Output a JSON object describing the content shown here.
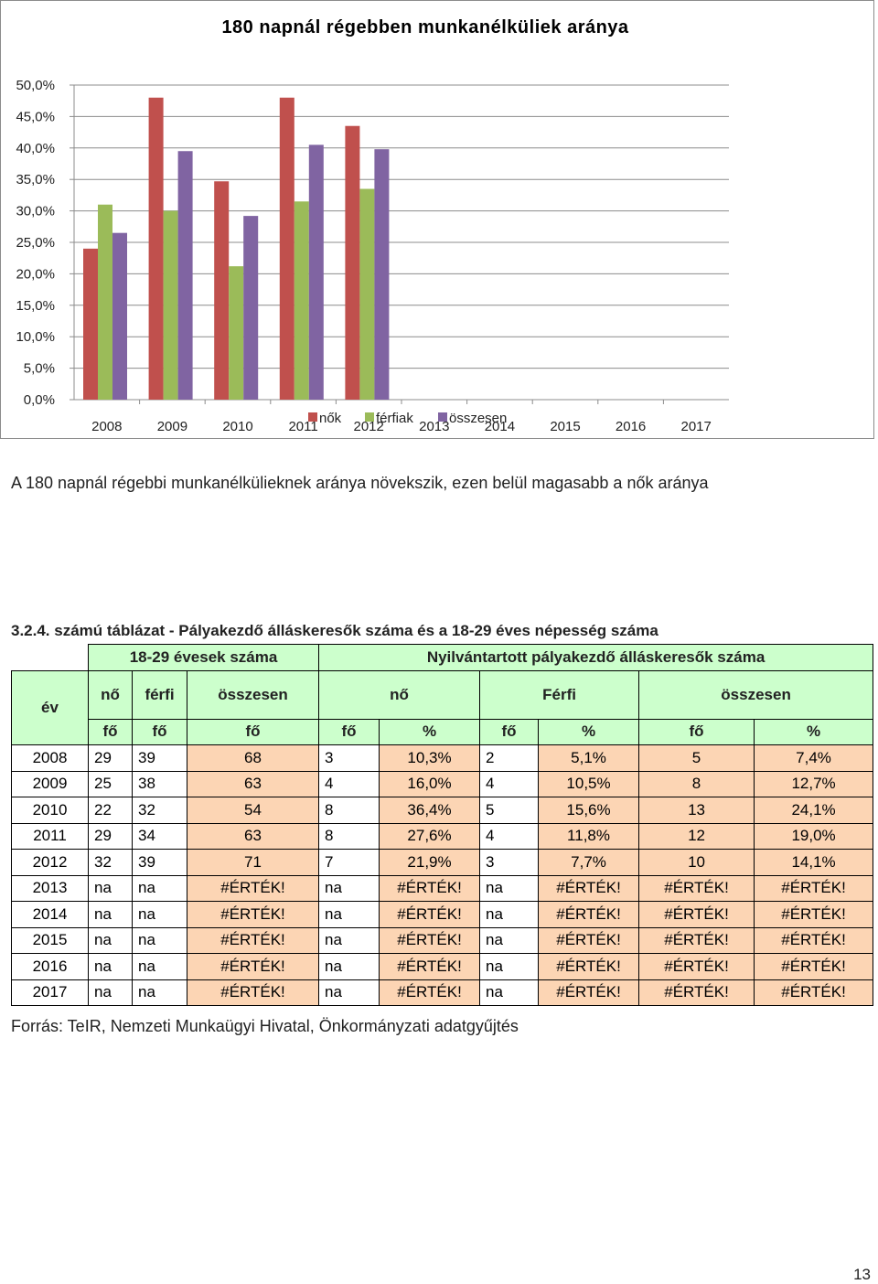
{
  "chart_data": {
    "type": "bar",
    "title": "180 napnál régebben munkanélküliek aránya",
    "categories": [
      "2008",
      "2009",
      "2010",
      "2011",
      "2012",
      "2013",
      "2014",
      "2015",
      "2016",
      "2017"
    ],
    "y_ticks": [
      "50,0%",
      "45,0%",
      "40,0%",
      "35,0%",
      "30,0%",
      "25,0%",
      "20,0%",
      "15,0%",
      "10,0%",
      "5,0%",
      "0,0%"
    ],
    "ylim": [
      0,
      50
    ],
    "grid": true,
    "legend_position": "bottom",
    "series": [
      {
        "name": "nők",
        "color": "#c0504d",
        "values": [
          24.0,
          48.0,
          34.7,
          48.0,
          43.5,
          null,
          null,
          null,
          null,
          null
        ]
      },
      {
        "name": "férfiak",
        "color": "#9bbb59",
        "values": [
          31.0,
          30.0,
          21.2,
          31.5,
          33.5,
          null,
          null,
          null,
          null,
          null
        ]
      },
      {
        "name": "összesen",
        "color": "#8064a2",
        "values": [
          26.5,
          39.5,
          29.2,
          40.5,
          39.8,
          null,
          null,
          null,
          null,
          null
        ]
      }
    ]
  },
  "paragraph": "A 180 napnál régebbi munkanélkülieknek aránya növekszik, ezen belül magasabb a nők aránya",
  "table": {
    "caption": "3.2.4. számú táblázat - Pályakezdő álláskeresők száma és a 18-29 éves népesség száma",
    "group1": "18-29 évesek száma",
    "group2": "Nyilvántartott pályakezdő álláskeresők száma",
    "col_ev": "év",
    "col_no": "nő",
    "col_ferfi": "férfi",
    "col_osszesen": "összesen",
    "col_no2": "nő",
    "col_ferfi2": "Férfi",
    "col_osszesen2": "összesen",
    "unit_fo": "fő",
    "unit_pct": "%",
    "rows": [
      [
        "2008",
        "29",
        "39",
        "68",
        "3",
        "10,3%",
        "2",
        "5,1%",
        "5",
        "7,4%"
      ],
      [
        "2009",
        "25",
        "38",
        "63",
        "4",
        "16,0%",
        "4",
        "10,5%",
        "8",
        "12,7%"
      ],
      [
        "2010",
        "22",
        "32",
        "54",
        "8",
        "36,4%",
        "5",
        "15,6%",
        "13",
        "24,1%"
      ],
      [
        "2011",
        "29",
        "34",
        "63",
        "8",
        "27,6%",
        "4",
        "11,8%",
        "12",
        "19,0%"
      ],
      [
        "2012",
        "32",
        "39",
        "71",
        "7",
        "21,9%",
        "3",
        "7,7%",
        "10",
        "14,1%"
      ],
      [
        "2013",
        "na",
        "na",
        "#ÉRTÉK!",
        "na",
        "#ÉRTÉK!",
        "na",
        "#ÉRTÉK!",
        "#ÉRTÉK!",
        "#ÉRTÉK!"
      ],
      [
        "2014",
        "na",
        "na",
        "#ÉRTÉK!",
        "na",
        "#ÉRTÉK!",
        "na",
        "#ÉRTÉK!",
        "#ÉRTÉK!",
        "#ÉRTÉK!"
      ],
      [
        "2015",
        "na",
        "na",
        "#ÉRTÉK!",
        "na",
        "#ÉRTÉK!",
        "na",
        "#ÉRTÉK!",
        "#ÉRTÉK!",
        "#ÉRTÉK!"
      ],
      [
        "2016",
        "na",
        "na",
        "#ÉRTÉK!",
        "na",
        "#ÉRTÉK!",
        "na",
        "#ÉRTÉK!",
        "#ÉRTÉK!",
        "#ÉRTÉK!"
      ],
      [
        "2017",
        "na",
        "na",
        "#ÉRTÉK!",
        "na",
        "#ÉRTÉK!",
        "na",
        "#ÉRTÉK!",
        "#ÉRTÉK!",
        "#ÉRTÉK!"
      ]
    ]
  },
  "source": "Forrás: TeIR, Nemzeti Munkaügyi Hivatal, Önkormányzati adatgyűjtés",
  "page_number": "13"
}
